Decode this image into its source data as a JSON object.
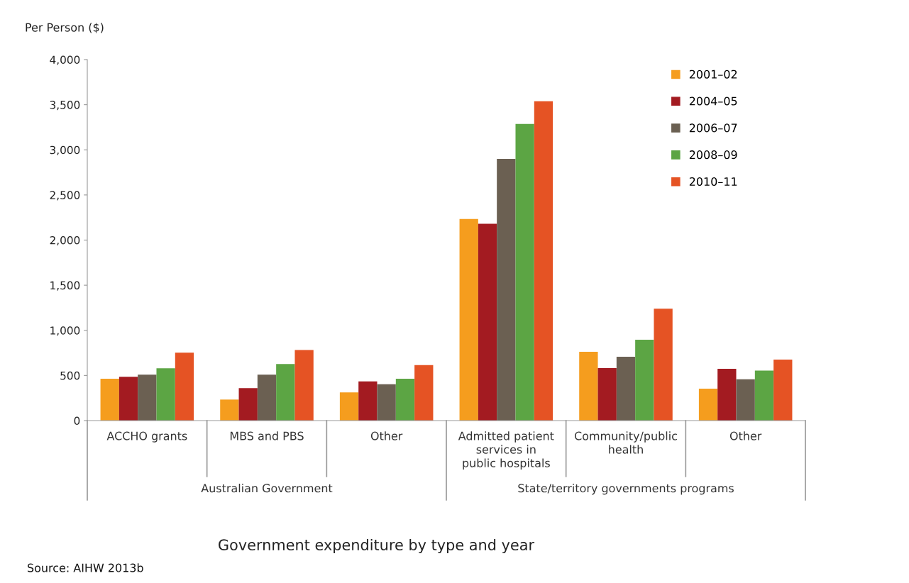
{
  "chart_data": {
    "type": "bar",
    "title": "Government expenditure by type and year",
    "ylabel": "Per Person ($)",
    "categories": [
      "ACCHO grants",
      "MBS and PBS",
      "Other",
      "Admitted patient\nservices in\npublic hospitals",
      "Community/public\nhealth",
      "Other"
    ],
    "series": [
      {
        "name": "2001–02",
        "color": "#f59d1e",
        "values": [
          463,
          233,
          312,
          2233,
          762,
          354
        ]
      },
      {
        "name": "2004–05",
        "color": "#a31b21",
        "values": [
          486,
          360,
          435,
          2180,
          581,
          574
        ]
      },
      {
        "name": "2006–07",
        "color": "#6b6052",
        "values": [
          508,
          508,
          402,
          2899,
          707,
          458
        ]
      },
      {
        "name": "2008–09",
        "color": "#5ca544",
        "values": [
          579,
          626,
          463,
          3287,
          896,
          555
        ]
      },
      {
        "name": "2010–11",
        "color": "#e55324",
        "values": [
          753,
          781,
          615,
          3539,
          1239,
          676
        ]
      }
    ],
    "ylim": [
      0,
      4000
    ],
    "yticks": [
      {
        "value": 0,
        "label": "0"
      },
      {
        "value": 500,
        "label": "500"
      },
      {
        "value": 1000,
        "label": "1,000"
      },
      {
        "value": 1500,
        "label": "1,500"
      },
      {
        "value": 2000,
        "label": "2,000"
      },
      {
        "value": 2500,
        "label": "2,500"
      },
      {
        "value": 3000,
        "label": "3,000"
      },
      {
        "value": 3500,
        "label": "3,500"
      },
      {
        "value": 4000,
        "label": "4,000"
      }
    ],
    "grid": false,
    "legend": "top right",
    "annotations": [
      "Australian Government",
      "State/territory governments programs",
      "Source: AIHW 2013b"
    ]
  }
}
